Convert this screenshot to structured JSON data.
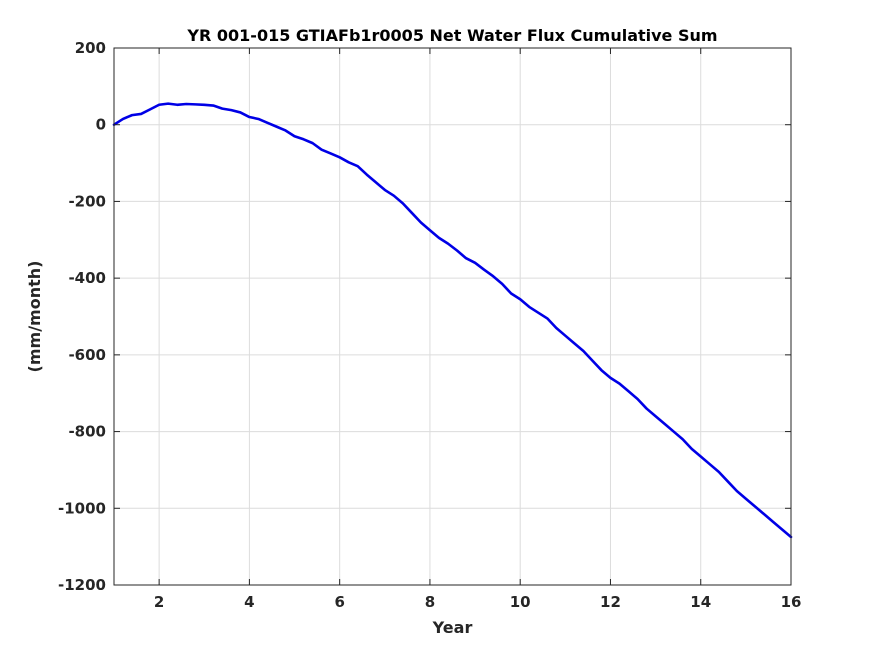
{
  "chart_data": {
    "type": "line",
    "title": "YR 001-015 GTIAFb1r0005 Net Water Flux Cumulative Sum",
    "xlabel": "Year",
    "ylabel": "(mm/month)",
    "xlim": [
      1,
      16
    ],
    "ylim": [
      -1200,
      200
    ],
    "xticks": [
      2,
      4,
      6,
      8,
      10,
      12,
      14,
      16
    ],
    "yticks": [
      -1200,
      -1000,
      -800,
      -600,
      -400,
      -200,
      0,
      200
    ],
    "xtick_labels": [
      "2",
      "4",
      "6",
      "8",
      "10",
      "12",
      "14",
      "16"
    ],
    "ytick_labels": [
      "-1200",
      "-1000",
      "-800",
      "-600",
      "-400",
      "-200",
      "0",
      "200"
    ],
    "grid": true,
    "series": [
      {
        "color": "#0000e6",
        "x": [
          1.0,
          1.2,
          1.4,
          1.6,
          1.8,
          2.0,
          2.2,
          2.4,
          2.6,
          2.8,
          3.0,
          3.2,
          3.4,
          3.6,
          3.8,
          4.0,
          4.2,
          4.4,
          4.6,
          4.8,
          5.0,
          5.2,
          5.4,
          5.6,
          5.8,
          6.0,
          6.2,
          6.4,
          6.6,
          6.8,
          7.0,
          7.2,
          7.4,
          7.6,
          7.8,
          8.0,
          8.2,
          8.4,
          8.6,
          8.8,
          9.0,
          9.2,
          9.4,
          9.6,
          9.8,
          10.0,
          10.2,
          10.4,
          10.6,
          10.8,
          11.0,
          11.2,
          11.4,
          11.6,
          11.8,
          12.0,
          12.2,
          12.4,
          12.6,
          12.8,
          13.0,
          13.2,
          13.4,
          13.6,
          13.8,
          14.0,
          14.2,
          14.4,
          14.6,
          14.8,
          15.0,
          15.2,
          15.4,
          15.6,
          15.8,
          16.0
        ],
        "y": [
          0,
          15,
          25,
          28,
          40,
          52,
          55,
          52,
          54,
          53,
          52,
          50,
          42,
          38,
          32,
          20,
          15,
          5,
          -5,
          -15,
          -30,
          -38,
          -48,
          -65,
          -75,
          -85,
          -98,
          -108,
          -130,
          -150,
          -170,
          -185,
          -205,
          -230,
          -255,
          -275,
          -295,
          -310,
          -328,
          -348,
          -360,
          -378,
          -395,
          -415,
          -440,
          -455,
          -475,
          -490,
          -505,
          -530,
          -550,
          -570,
          -590,
          -615,
          -640,
          -660,
          -675,
          -695,
          -715,
          -740,
          -760,
          -780,
          -800,
          -820,
          -845,
          -865,
          -885,
          -905,
          -930,
          -955,
          -975,
          -995,
          -1015,
          -1035,
          -1055,
          -1075
        ]
      }
    ]
  }
}
